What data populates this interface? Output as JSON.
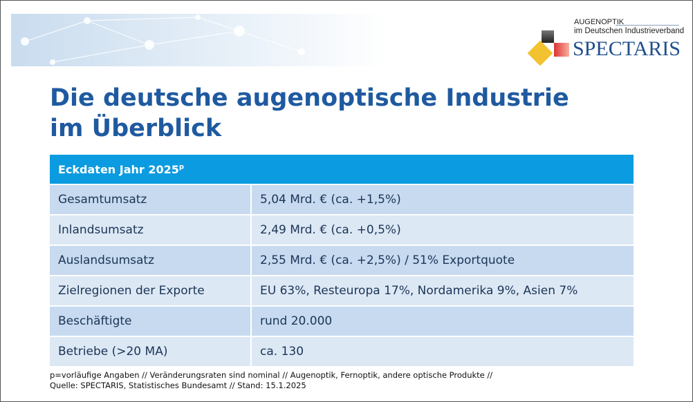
{
  "title": "Die deutsche augenoptische Industrie im Überblick",
  "title_line1": "Die deutsche augenoptische Industrie",
  "title_line2": "im Überblick",
  "logo": {
    "line1": "AUGENOPTIK",
    "line2": "im Deutschen Industrieverband",
    "brand": "SPECTARIS"
  },
  "table": {
    "header": "Eckdaten Jahr 2025",
    "header_sup": "p",
    "rows": [
      {
        "label": "Gesamtumsatz",
        "value": "5,04 Mrd. € (ca. +1,5%)"
      },
      {
        "label": "Inlandsumsatz",
        "value": "2,49 Mrd. € (ca. +0,5%)"
      },
      {
        "label": "Auslandsumsatz",
        "value": "2,55 Mrd. € (ca. +2,5%) / 51% Exportquote"
      },
      {
        "label": "Zielregionen der Exporte",
        "value": "EU 63%, Resteuropa 17%, Nordamerika 9%, Asien 7%"
      },
      {
        "label": "Beschäftigte",
        "value": "rund 20.000"
      },
      {
        "label": "Betriebe (>20 MA)",
        "value": "ca. 130"
      }
    ]
  },
  "footnote": {
    "line1": "p=vorläufige Angaben // Veränderungsraten sind nominal // Augenoptik, Fernoptik, andere optische Produkte //",
    "line2": "Quelle: SPECTARIS, Statistisches Bundesamt // Stand: 15.1.2025"
  }
}
